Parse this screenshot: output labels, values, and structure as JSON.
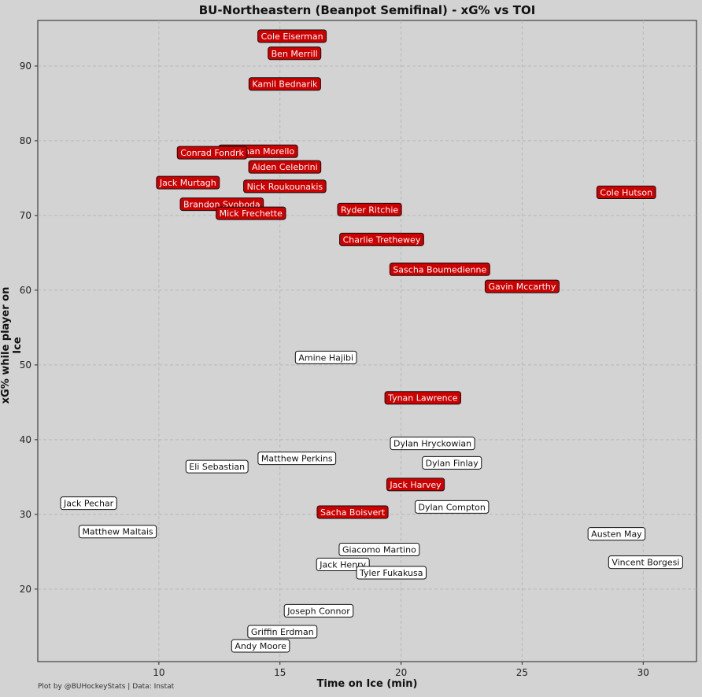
{
  "chart_data": {
    "type": "scatter",
    "title": "BU-Northeastern (Beanpot Semifinal) - xG% vs TOI",
    "xlabel": "Time on Ice (min)",
    "ylabel": "xG% while player on Ice",
    "xlim": [
      5.0,
      32.2
    ],
    "ylim": [
      10.3,
      96.1
    ],
    "xticks": [
      10,
      15,
      20,
      25,
      30
    ],
    "yticks": [
      20,
      30,
      40,
      50,
      60,
      70,
      80,
      90
    ],
    "grid": true,
    "caption": "Plot by @BUHockeyStats | Data: Instat",
    "colors": {
      "bu": "#cc0000",
      "neu": "#ffffff",
      "bu_text": "#ffffff",
      "neu_text": "#111111"
    },
    "points": [
      {
        "name": "Cole Eiserman",
        "x": 15.5,
        "y": 94.0,
        "team": "bu"
      },
      {
        "name": "Ben Merrill",
        "x": 15.6,
        "y": 91.7,
        "team": "bu"
      },
      {
        "name": "Kamil Bednarik",
        "x": 15.2,
        "y": 87.6,
        "team": "bu"
      },
      {
        "name": "Jonathan Morello",
        "x": 14.1,
        "y": 78.6,
        "team": "bu"
      },
      {
        "name": "Conrad Fondrk",
        "x": 12.2,
        "y": 78.4,
        "team": "bu"
      },
      {
        "name": "Aiden Celebrini",
        "x": 15.2,
        "y": 76.5,
        "team": "bu"
      },
      {
        "name": "Jack Murtagh",
        "x": 11.2,
        "y": 74.4,
        "team": "bu"
      },
      {
        "name": "Nick Roukounakis",
        "x": 15.2,
        "y": 73.9,
        "team": "bu"
      },
      {
        "name": "Cole Hutson",
        "x": 29.3,
        "y": 73.1,
        "team": "bu"
      },
      {
        "name": "Brandon Svoboda",
        "x": 12.6,
        "y": 71.5,
        "team": "bu"
      },
      {
        "name": "Ryder Ritchie",
        "x": 18.7,
        "y": 70.8,
        "team": "bu"
      },
      {
        "name": "Mick Frechette",
        "x": 13.8,
        "y": 70.3,
        "team": "bu"
      },
      {
        "name": "Charlie Trethewey",
        "x": 19.2,
        "y": 66.8,
        "team": "bu"
      },
      {
        "name": "Sascha Boumedienne",
        "x": 21.6,
        "y": 62.8,
        "team": "bu"
      },
      {
        "name": "Gavin Mccarthy",
        "x": 25.0,
        "y": 60.5,
        "team": "bu"
      },
      {
        "name": "Amine Hajibi",
        "x": 16.9,
        "y": 51.0,
        "team": "neu"
      },
      {
        "name": "Tynan Lawrence",
        "x": 20.9,
        "y": 45.6,
        "team": "bu"
      },
      {
        "name": "Dylan Hryckowian",
        "x": 21.3,
        "y": 39.5,
        "team": "neu"
      },
      {
        "name": "Matthew Perkins",
        "x": 15.7,
        "y": 37.5,
        "team": "neu"
      },
      {
        "name": "Dylan Finlay",
        "x": 22.1,
        "y": 36.9,
        "team": "neu"
      },
      {
        "name": "Eli Sebastian",
        "x": 12.4,
        "y": 36.4,
        "team": "neu"
      },
      {
        "name": "Jack Harvey",
        "x": 20.6,
        "y": 34.0,
        "team": "bu"
      },
      {
        "name": "Jack Pechar",
        "x": 7.1,
        "y": 31.5,
        "team": "neu"
      },
      {
        "name": "Dylan Compton",
        "x": 22.1,
        "y": 31.0,
        "team": "neu"
      },
      {
        "name": "Sacha Boisvert",
        "x": 18.0,
        "y": 30.3,
        "team": "bu"
      },
      {
        "name": "Matthew Maltais",
        "x": 8.3,
        "y": 27.7,
        "team": "neu"
      },
      {
        "name": "Austen May",
        "x": 28.9,
        "y": 27.4,
        "team": "neu"
      },
      {
        "name": "Giacomo Martino",
        "x": 19.1,
        "y": 25.3,
        "team": "neu"
      },
      {
        "name": "Vincent Borgesi",
        "x": 30.1,
        "y": 23.6,
        "team": "neu"
      },
      {
        "name": "Jack Henry",
        "x": 17.6,
        "y": 23.3,
        "team": "neu"
      },
      {
        "name": "Tyler Fukakusa",
        "x": 19.6,
        "y": 22.2,
        "team": "neu"
      },
      {
        "name": "Joseph Connor",
        "x": 16.6,
        "y": 17.1,
        "team": "neu"
      },
      {
        "name": "Griffin Erdman",
        "x": 15.1,
        "y": 14.3,
        "team": "neu"
      },
      {
        "name": "Andy Moore",
        "x": 14.2,
        "y": 12.4,
        "team": "neu"
      }
    ]
  }
}
